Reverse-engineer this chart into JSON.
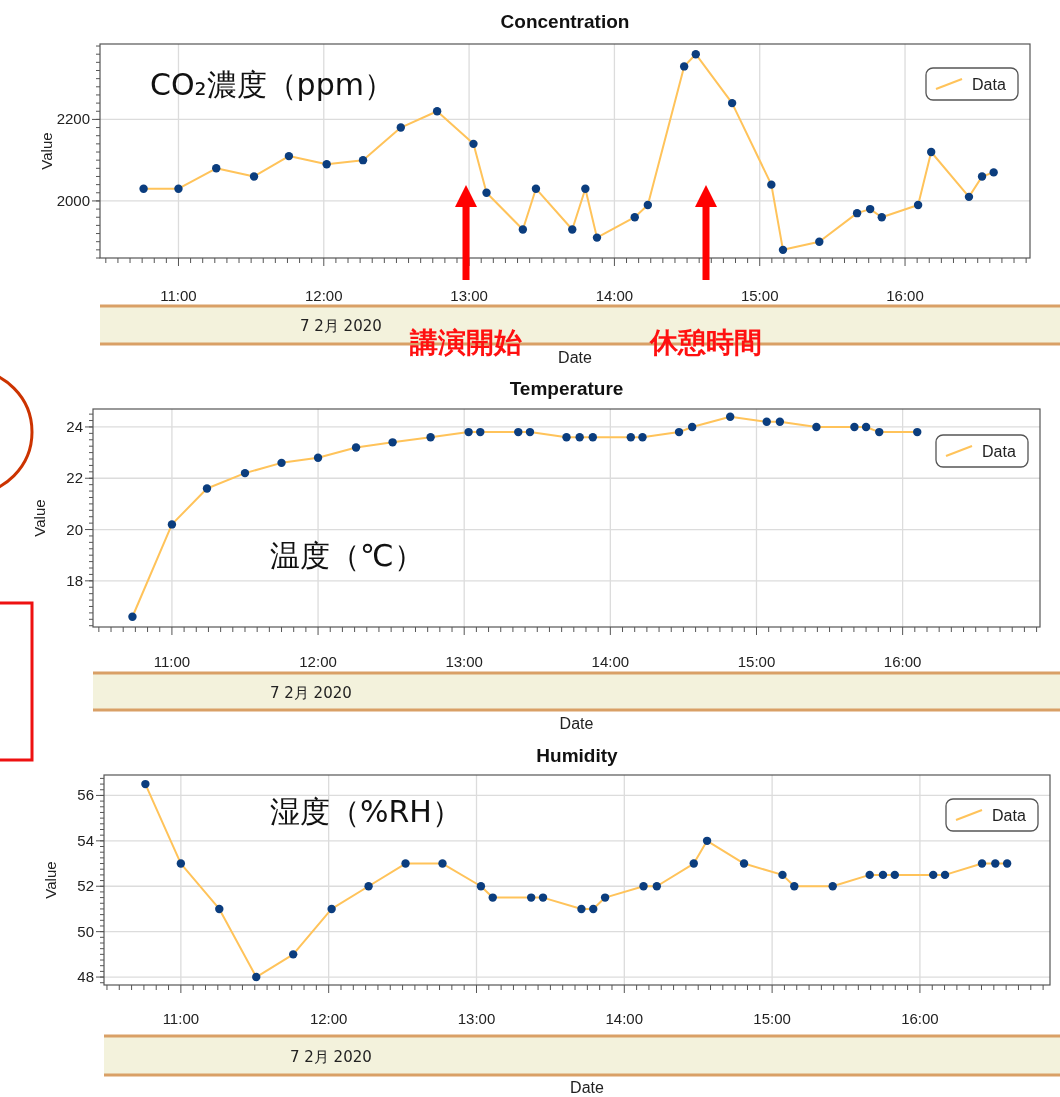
{
  "chart_data": [
    {
      "type": "line",
      "title": "Concentration",
      "xlabel": "Date",
      "ylabel": "Value",
      "x": [
        10.76,
        11.0,
        11.26,
        11.52,
        11.76,
        12.02,
        12.27,
        12.53,
        12.78,
        13.03,
        13.12,
        13.37,
        13.46,
        13.71,
        13.8,
        13.88,
        14.14,
        14.23,
        14.48,
        14.56,
        14.81,
        15.08,
        15.16,
        15.41,
        15.67,
        15.76,
        15.84,
        16.09,
        16.18,
        16.44,
        16.53,
        16.61
      ],
      "series": [
        {
          "name": "Data",
          "color": "#ffc35a",
          "values": [
            2030,
            2030,
            2080,
            2060,
            2110,
            2090,
            2100,
            2180,
            2220,
            2140,
            2020,
            1930,
            2030,
            1930,
            2030,
            1910,
            1960,
            1990,
            2330,
            2360,
            2240,
            2040,
            1880,
            1900,
            1970,
            1980,
            1960,
            1990,
            2120,
            2010,
            2060,
            2070
          ]
        }
      ],
      "xlim": [
        10.46,
        16.86
      ],
      "ylim": [
        1860,
        2385
      ],
      "xticks": [
        {
          "value": 11,
          "label": "11:00"
        },
        {
          "value": 12,
          "label": "12:00"
        },
        {
          "value": 13,
          "label": "13:00"
        },
        {
          "value": 14,
          "label": "14:00"
        },
        {
          "value": 15,
          "label": "15:00"
        },
        {
          "value": 16,
          "label": "16:00"
        }
      ],
      "yticks": [
        2000,
        2200
      ],
      "grid": true,
      "legend": "top right",
      "marker": "circle",
      "line_style": "solid",
      "annotations": [
        "CO₂濃度（ppm）",
        "7 2月 2020",
        "講演開始",
        "休憩時間"
      ]
    },
    {
      "type": "line",
      "title": "Temperature",
      "xlabel": "Date",
      "ylabel": "Value",
      "x": [
        10.73,
        11.0,
        11.24,
        11.5,
        11.75,
        12.0,
        12.26,
        12.51,
        12.77,
        13.03,
        13.11,
        13.37,
        13.45,
        13.7,
        13.79,
        13.88,
        14.14,
        14.22,
        14.47,
        14.56,
        14.82,
        15.07,
        15.16,
        15.41,
        15.67,
        15.75,
        15.84,
        16.1
      ],
      "series": [
        {
          "name": "Data",
          "color": "#ffc35a",
          "values": [
            16.6,
            20.2,
            21.6,
            22.2,
            22.6,
            22.8,
            23.2,
            23.4,
            23.6,
            23.8,
            23.8,
            23.8,
            23.8,
            23.6,
            23.6,
            23.6,
            23.6,
            23.6,
            23.8,
            24.0,
            24.4,
            24.2,
            24.2,
            24.0,
            24.0,
            24.0,
            23.8,
            23.8
          ]
        }
      ],
      "xlim": [
        10.46,
        16.94
      ],
      "ylim": [
        16.2,
        24.7
      ],
      "xticks": [
        {
          "value": 11,
          "label": "11:00"
        },
        {
          "value": 12,
          "label": "12:00"
        },
        {
          "value": 13,
          "label": "13:00"
        },
        {
          "value": 14,
          "label": "14:00"
        },
        {
          "value": 15,
          "label": "15:00"
        },
        {
          "value": 16,
          "label": "16:00"
        }
      ],
      "yticks": [
        18,
        20,
        22,
        24
      ],
      "grid": true,
      "legend": "top right",
      "marker": "circle",
      "line_style": "solid",
      "annotations": [
        "温度（℃）",
        "7 2月 2020"
      ]
    },
    {
      "type": "line",
      "title": "Humidity",
      "xlabel": "Date",
      "ylabel": "Value",
      "x": [
        10.76,
        11.0,
        11.26,
        11.51,
        11.76,
        12.02,
        12.27,
        12.52,
        12.77,
        13.03,
        13.11,
        13.37,
        13.45,
        13.71,
        13.79,
        13.87,
        14.13,
        14.22,
        14.47,
        14.56,
        14.81,
        15.07,
        15.15,
        15.41,
        15.66,
        15.75,
        15.83,
        16.09,
        16.17,
        16.42,
        16.51,
        16.59
      ],
      "series": [
        {
          "name": "Data",
          "color": "#ffc35a",
          "values": [
            56.5,
            53,
            51,
            48,
            49,
            51,
            52,
            53,
            53,
            52,
            51.5,
            51.5,
            51.5,
            51,
            51,
            51.5,
            52,
            52,
            53,
            54,
            53,
            52.5,
            52,
            52,
            52.5,
            52.5,
            52.5,
            52.5,
            52.5,
            53,
            53,
            53
          ]
        }
      ],
      "xlim": [
        10.48,
        16.88
      ],
      "ylim": [
        47.65,
        56.9
      ],
      "xticks": [
        {
          "value": 11,
          "label": "11:00"
        },
        {
          "value": 12,
          "label": "12:00"
        },
        {
          "value": 13,
          "label": "13:00"
        },
        {
          "value": 14,
          "label": "14:00"
        },
        {
          "value": 15,
          "label": "15:00"
        },
        {
          "value": 16,
          "label": "16:00"
        }
      ],
      "yticks": [
        48,
        50,
        52,
        54,
        56
      ],
      "grid": true,
      "legend": "top right",
      "marker": "circle",
      "line_style": "solid",
      "annotations": [
        "湿度（%RH）",
        "7 2月 2020"
      ]
    }
  ]
}
